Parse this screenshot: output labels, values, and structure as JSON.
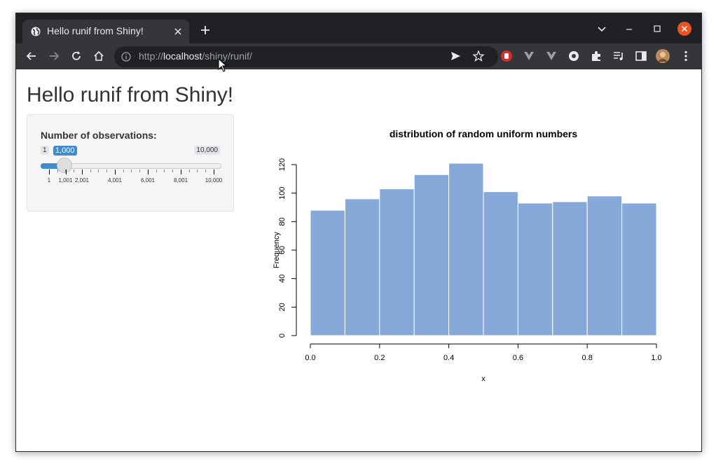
{
  "browser": {
    "tab_title": "Hello runif from Shiny!",
    "url_scheme": "http://",
    "url_host": "localhost",
    "url_path": "/shiny/runif/"
  },
  "page": {
    "title": "Hello runif from Shiny!"
  },
  "slider": {
    "label": "Number of observations:",
    "min_label": "1",
    "max_label": "10,000",
    "value_label": "1,000",
    "value": 1000,
    "min": 1,
    "max": 10000,
    "grid_labels": [
      "1",
      "1,001",
      "2,001",
      "4,001",
      "6,001",
      "8,001",
      "10,000"
    ],
    "accent_color": "#428bca"
  },
  "chart_data": {
    "type": "bar",
    "title": "distribution of random uniform numbers",
    "xlabel": "x",
    "ylabel": "Frequency",
    "bins": [
      [
        0.0,
        0.1
      ],
      [
        0.1,
        0.2
      ],
      [
        0.2,
        0.3
      ],
      [
        0.3,
        0.4
      ],
      [
        0.4,
        0.5
      ],
      [
        0.5,
        0.6
      ],
      [
        0.6,
        0.7
      ],
      [
        0.7,
        0.8
      ],
      [
        0.8,
        0.9
      ],
      [
        0.9,
        1.0
      ]
    ],
    "values": [
      88,
      96,
      103,
      113,
      121,
      101,
      93,
      94,
      98,
      93
    ],
    "xlim": [
      0,
      1
    ],
    "ylim": [
      0,
      120
    ],
    "xticks": [
      "0.0",
      "0.2",
      "0.4",
      "0.6",
      "0.8",
      "1.0"
    ],
    "yticks": [
      "0",
      "20",
      "40",
      "60",
      "80",
      "100",
      "120"
    ],
    "bar_color": "#87a9d9",
    "grid": false
  }
}
